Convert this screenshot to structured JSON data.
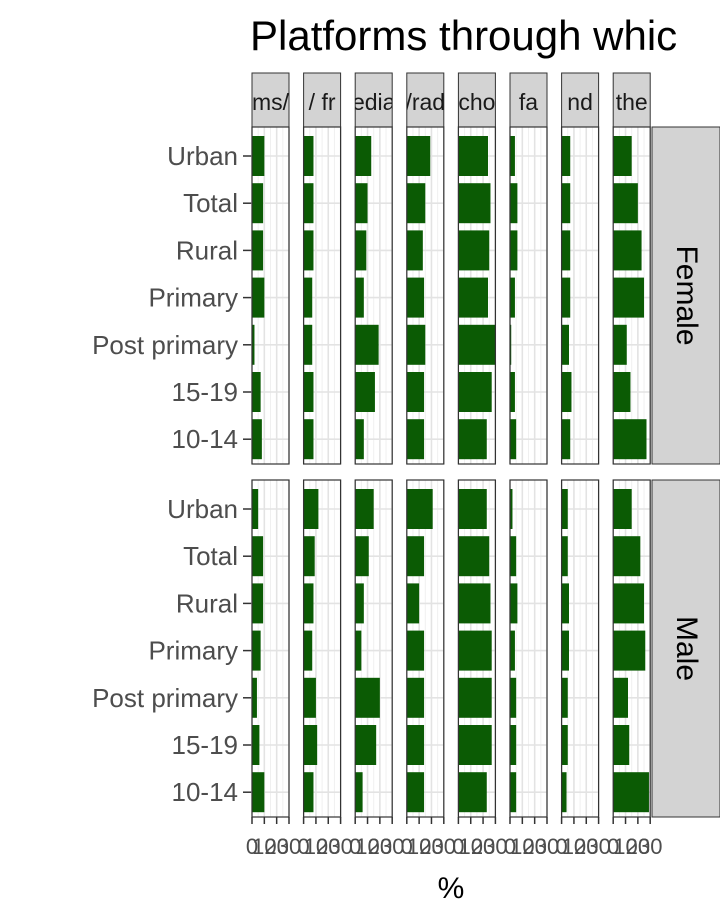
{
  "chart_data": {
    "type": "bar",
    "orientation": "horizontal",
    "title": "Platforms through whic",
    "xlabel": "%",
    "ylabel": "",
    "xlim": [
      0,
      30
    ],
    "x_ticks": [
      "0",
      "10",
      "20",
      "30"
    ],
    "categories": [
      "Urban",
      "Total",
      "Rural",
      "Primary",
      "Post primary",
      "15-19",
      "10-14"
    ],
    "bar_color": "#0b5b04",
    "strip_color": "#d3d3d3",
    "grid": true,
    "facet_columns": [
      "ms/",
      "/ fr",
      "edia",
      "/rad",
      "cho",
      "fa",
      "nd",
      "the"
    ],
    "facet_rows": [
      {
        "name": "Female",
        "panels": [
          [
            10,
            9,
            9,
            10,
            2,
            7,
            8
          ],
          [
            8,
            8,
            8,
            7,
            7,
            8,
            8
          ],
          [
            13,
            10,
            9,
            7,
            19,
            16,
            7
          ],
          [
            19,
            15,
            13,
            14,
            15,
            14,
            14
          ],
          [
            24,
            26,
            25,
            24,
            30,
            27,
            23
          ],
          [
            4,
            6,
            6,
            4,
            1,
            4,
            5
          ],
          [
            7,
            7,
            7,
            7,
            6,
            8,
            7
          ],
          [
            15,
            20,
            23,
            25,
            11,
            14,
            27
          ]
        ]
      },
      {
        "name": "Male",
        "panels": [
          [
            5,
            9,
            9,
            7,
            4,
            6,
            10
          ],
          [
            12,
            9,
            8,
            7,
            10,
            11,
            8
          ],
          [
            15,
            11,
            7,
            5,
            20,
            17,
            6
          ],
          [
            21,
            14,
            10,
            14,
            14,
            14,
            14
          ],
          [
            23,
            25,
            26,
            27,
            27,
            27,
            23
          ],
          [
            2,
            5,
            6,
            4,
            5,
            5,
            5
          ],
          [
            5,
            5,
            6,
            6,
            5,
            5,
            4
          ],
          [
            15,
            22,
            25,
            26,
            12,
            13,
            29
          ]
        ]
      }
    ]
  }
}
